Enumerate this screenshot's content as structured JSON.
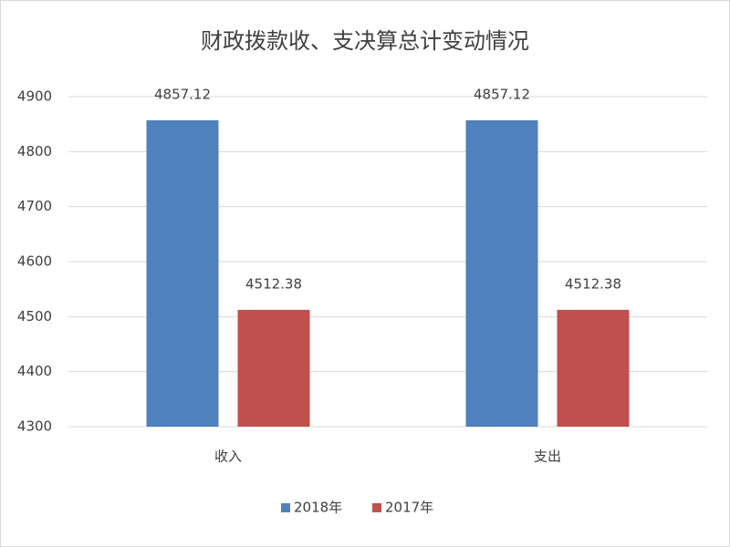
{
  "chart_data": {
    "type": "bar",
    "title": "财政拨款收、支决算总计变动情况",
    "categories": [
      "收入",
      "支出"
    ],
    "series": [
      {
        "name": "2018年",
        "color": "#4f81bd",
        "values": [
          4857.12,
          4857.12
        ]
      },
      {
        "name": "2017年",
        "color": "#c0504d",
        "values": [
          4512.38,
          4512.38
        ]
      }
    ],
    "ylim": [
      4300,
      4900
    ],
    "yticks": [
      4300,
      4400,
      4500,
      4600,
      4700,
      4800,
      4900
    ],
    "grid": true,
    "legend": "bottom"
  }
}
